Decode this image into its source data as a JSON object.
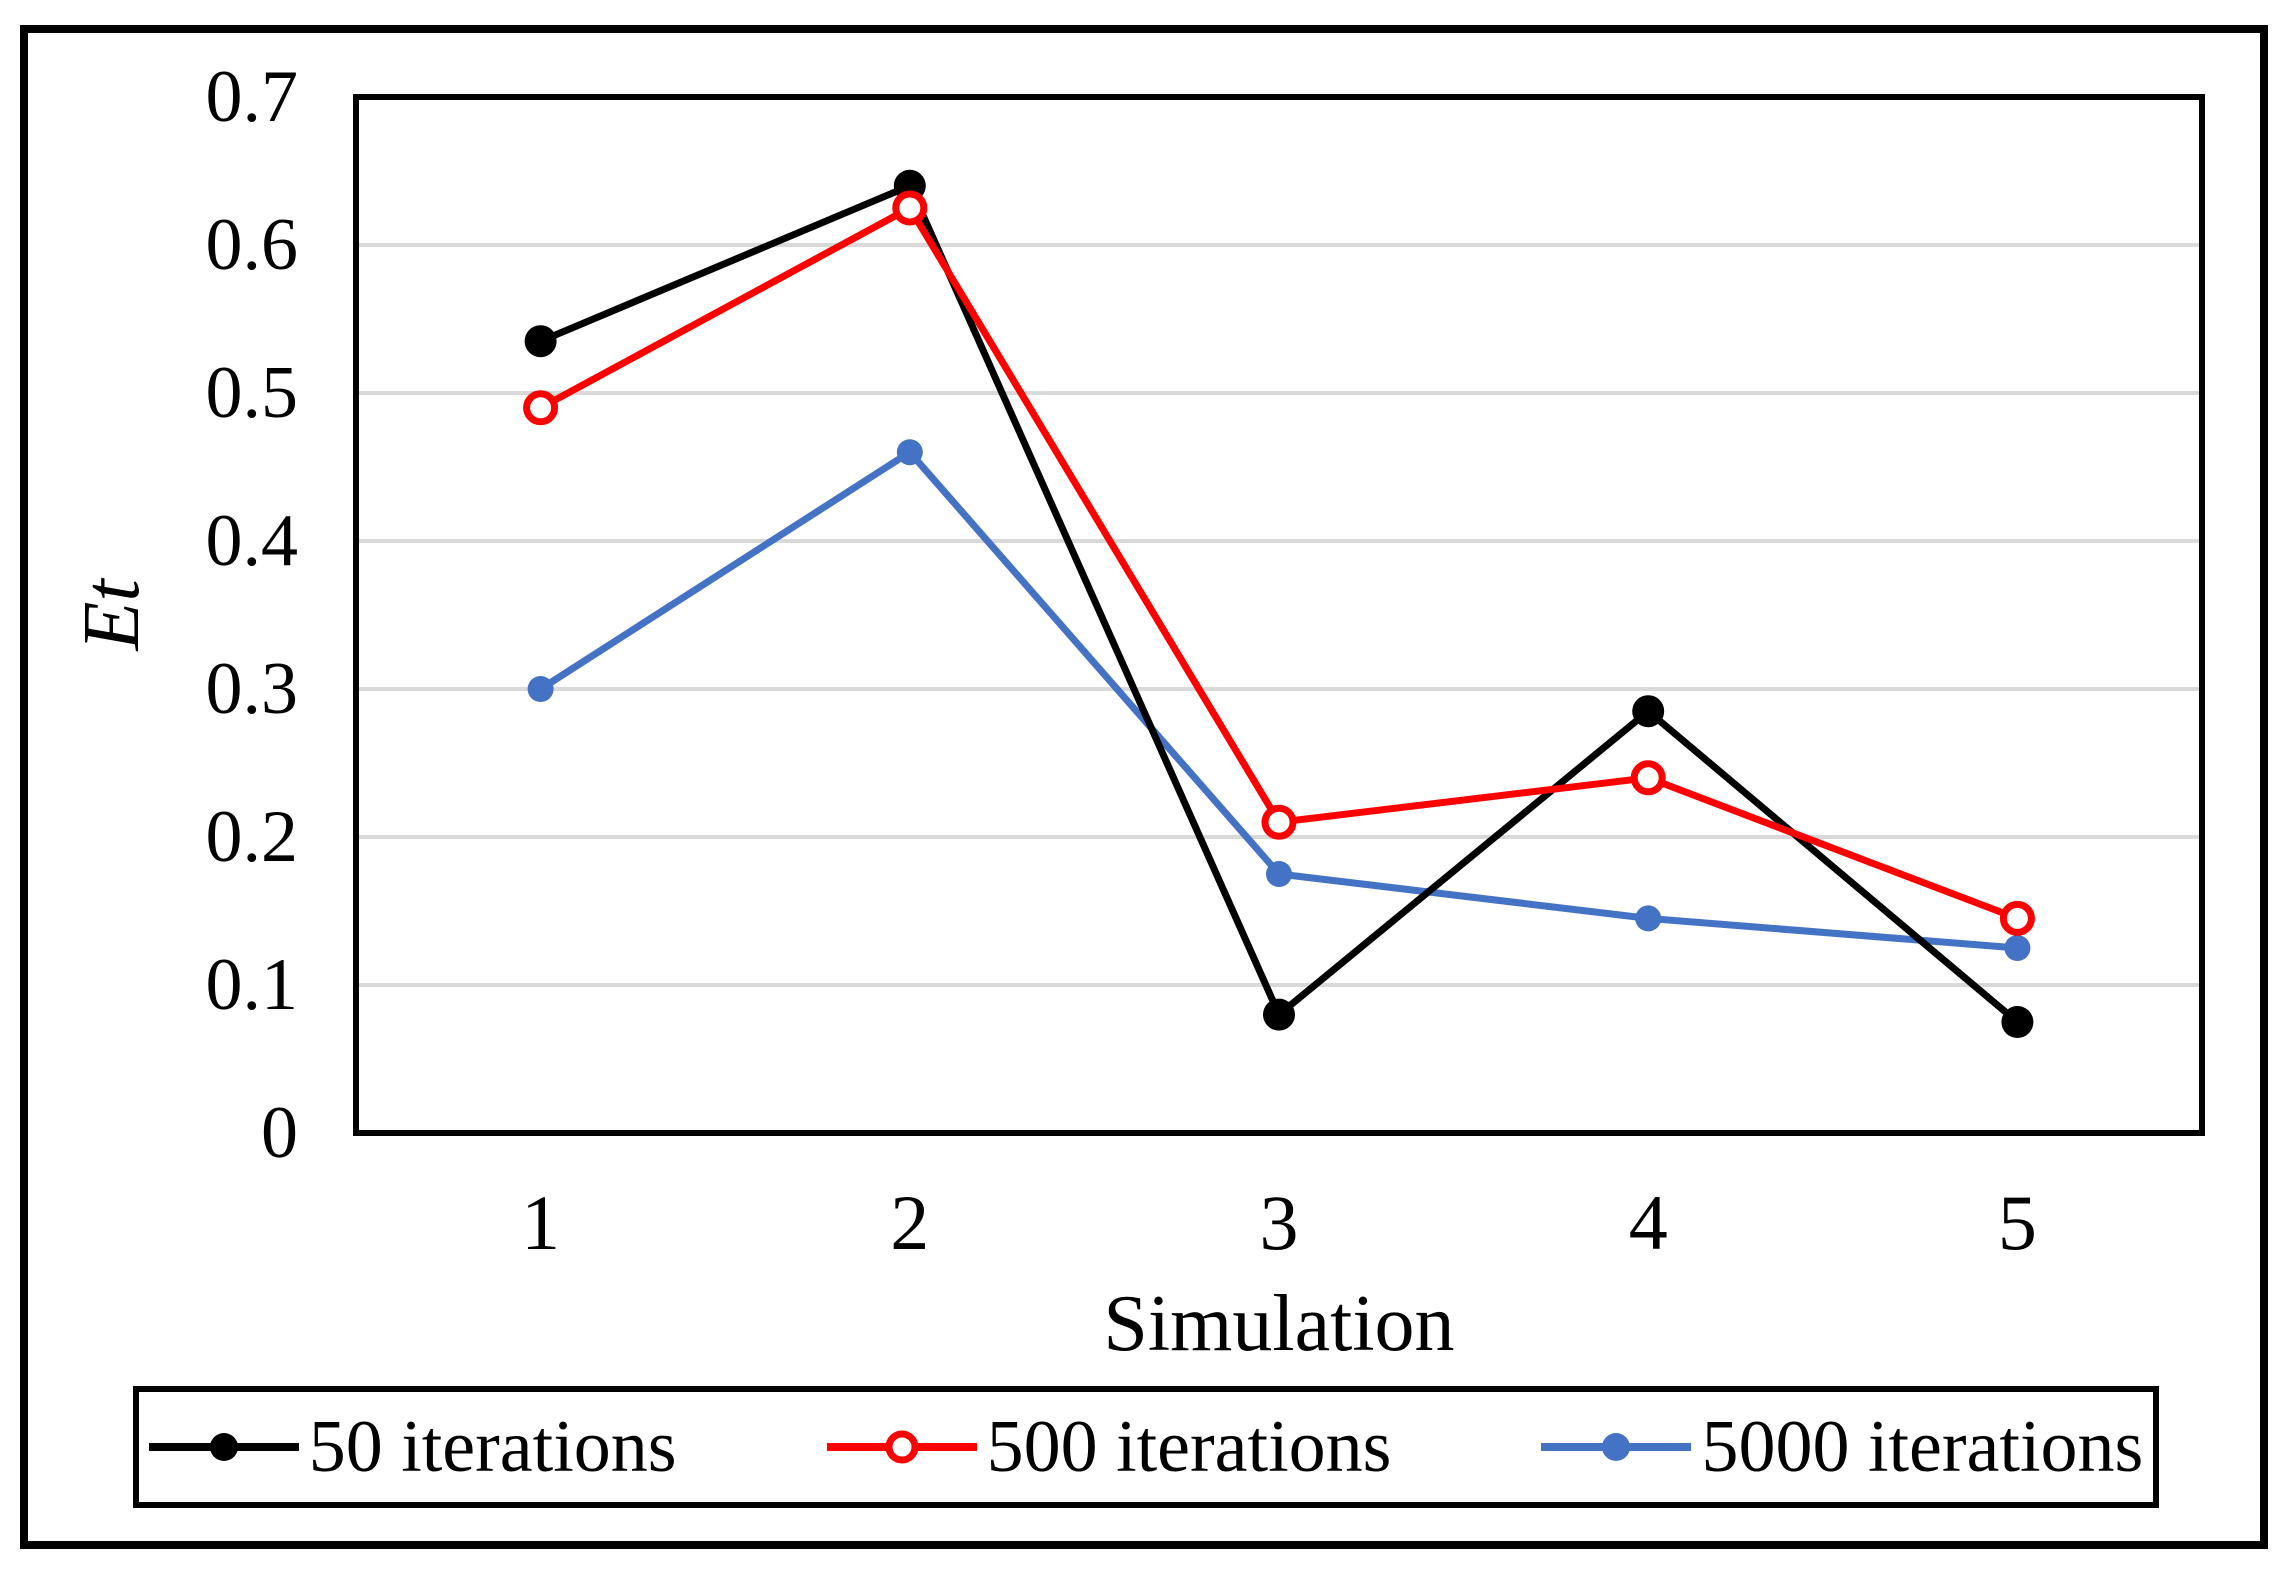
{
  "chart_data": {
    "type": "line",
    "title": "",
    "categories": [
      "1",
      "2",
      "3",
      "4",
      "5"
    ],
    "xlabel": "Simulation",
    "ylabel": "Et",
    "ylim": [
      0,
      0.7
    ],
    "yticks": [
      0,
      0.1,
      0.2,
      0.3,
      0.4,
      0.5,
      0.6,
      0.7
    ],
    "ytick_labels": [
      "0",
      "0.1",
      "0.2",
      "0.3",
      "0.4",
      "0.5",
      "0.6",
      "0.7"
    ],
    "grid": "horizontal-major",
    "legend_position": "bottom-boxed",
    "series": [
      {
        "name": "50 iterations",
        "color": "#000000",
        "marker": "filled-circle",
        "values": [
          0.535,
          0.64,
          0.08,
          0.285,
          0.075
        ]
      },
      {
        "name": "500 iterations",
        "color": "#FF0000",
        "marker": "open-circle",
        "values": [
          0.49,
          0.625,
          0.21,
          0.24,
          0.145
        ]
      },
      {
        "name": "5000 iterations",
        "color": "#4472C4",
        "marker": "filled-circle",
        "values": [
          0.3,
          0.46,
          0.175,
          0.145,
          0.125
        ]
      }
    ],
    "colors": {
      "gridline": "#D9D9D9",
      "frame": "#000000",
      "outer_border": "#000000",
      "background": "#FFFFFF"
    }
  }
}
